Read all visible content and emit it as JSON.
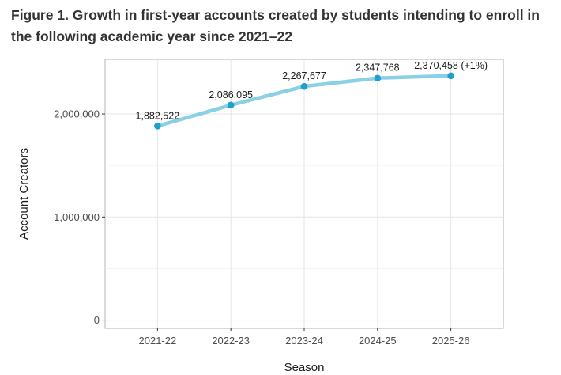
{
  "figure": {
    "title": "Figure 1. Growth in first-year accounts created by students intending to enroll in the following academic year since 2021–22"
  },
  "chart_data": {
    "type": "line",
    "title": "Figure 1. Growth in first-year accounts created by students intending to enroll in the following academic year since 2021–22",
    "xlabel": "Season",
    "ylabel": "Account Creators",
    "categories": [
      "2021-22",
      "2022-23",
      "2023-24",
      "2024-25",
      "2025-26"
    ],
    "series": [
      {
        "values": [
          1882522,
          2086095,
          2267677,
          2347768,
          2370458
        ],
        "color": "#87d0e6",
        "point_color": "#1f9fcc"
      }
    ],
    "data_labels": [
      "1,882,522",
      "2,086,095",
      "2,267,677",
      "2,347,768",
      "2,370,458 (+1%)"
    ],
    "yticks": [
      0,
      1000000,
      2000000
    ],
    "ytick_labels": [
      "0",
      "1,000,000",
      "2,000,000"
    ],
    "ylim": [
      -80000,
      2530000
    ],
    "grid": true,
    "legend": "none"
  }
}
